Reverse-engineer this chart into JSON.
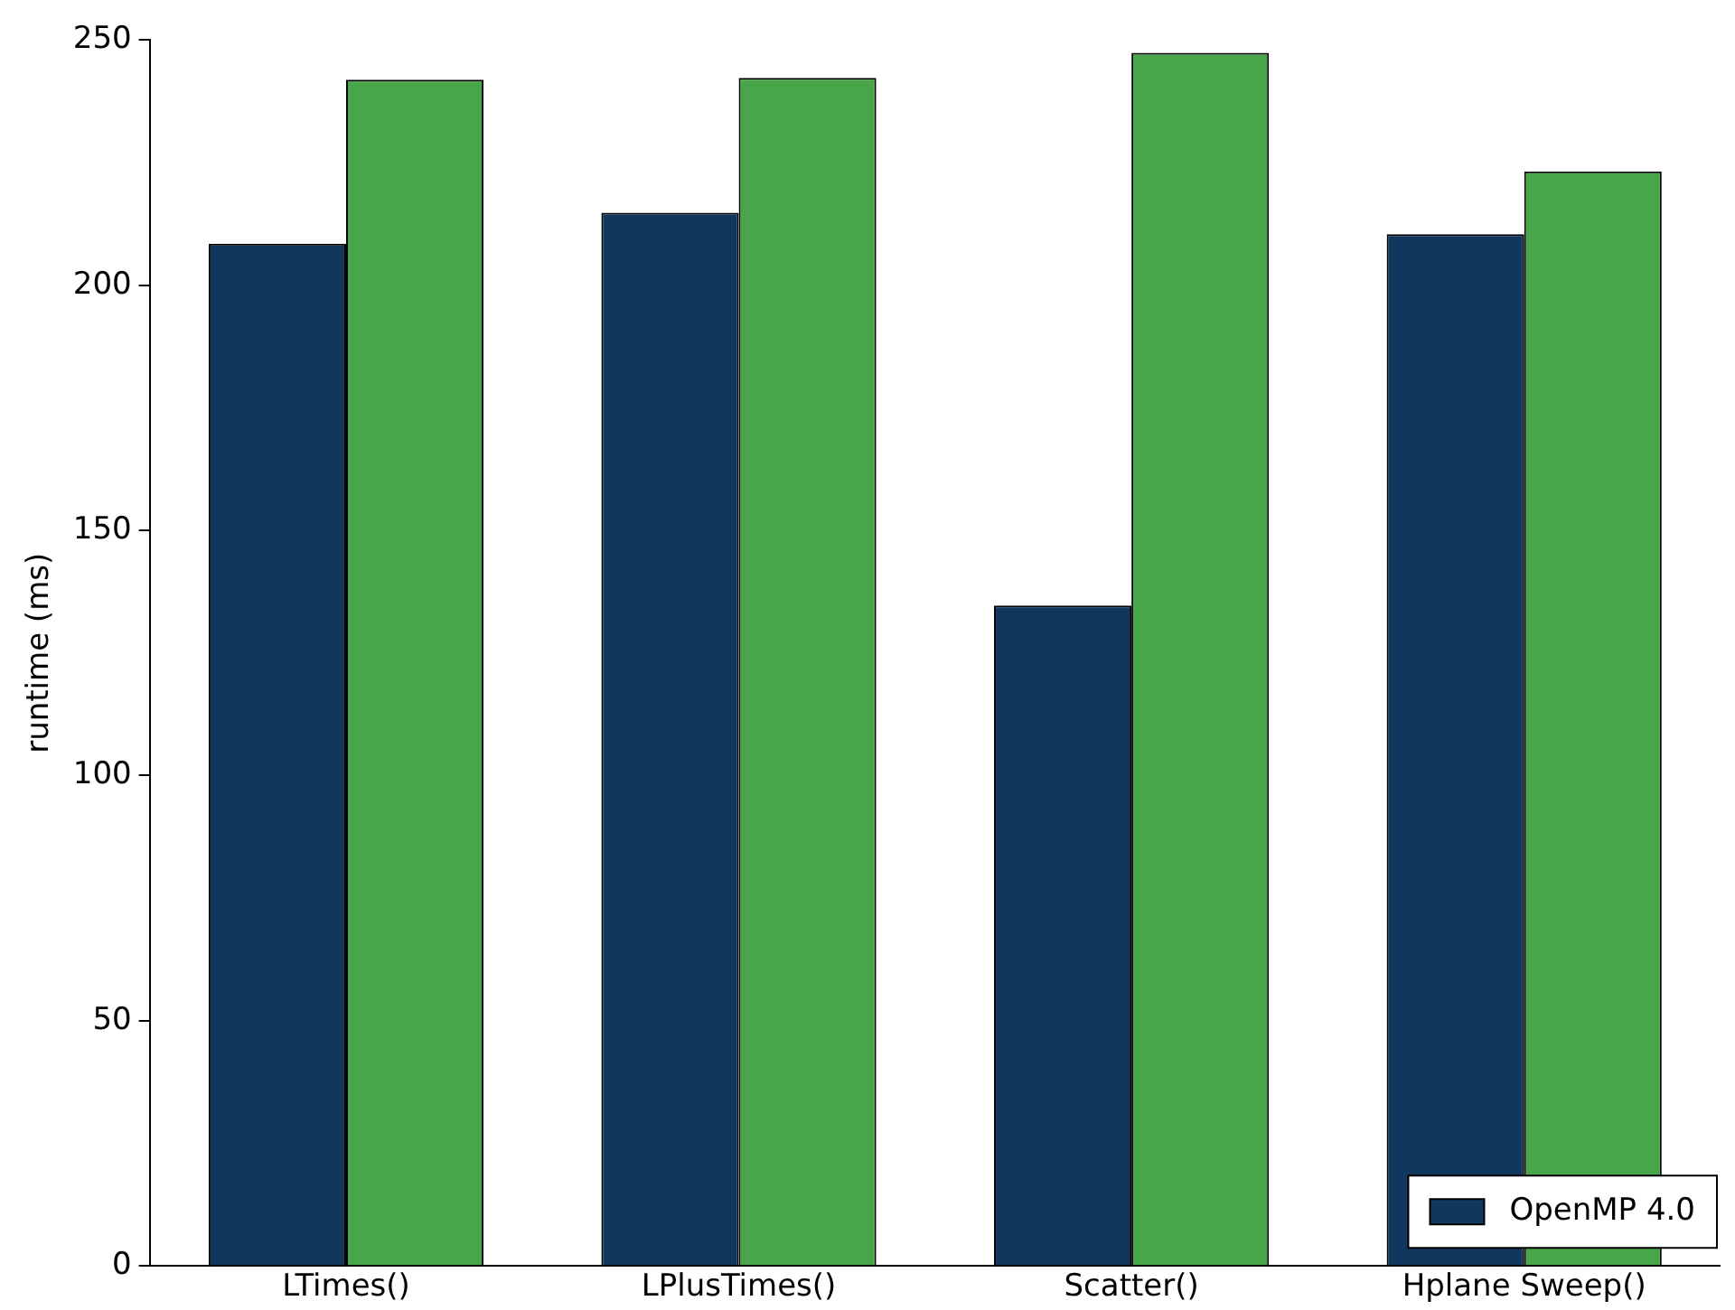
{
  "chart_data": {
    "type": "bar",
    "ylabel": "runtime (ms)",
    "categories": [
      "LTimes()",
      "LPlusTimes()",
      "Scatter()",
      "Hplane Sweep()"
    ],
    "series": [
      {
        "name": "OpenMP 4.0",
        "color": "#10375e",
        "values": [
          208.5,
          214.8,
          134.7,
          210.4
        ]
      },
      {
        "color": "#48a54a",
        "values": [
          241.9,
          242.3,
          247.4,
          223.2
        ]
      }
    ],
    "ylim": [
      0,
      250
    ],
    "yticks": [
      0,
      50,
      100,
      150,
      200,
      250
    ],
    "grid": false,
    "legend": "bottom right"
  }
}
